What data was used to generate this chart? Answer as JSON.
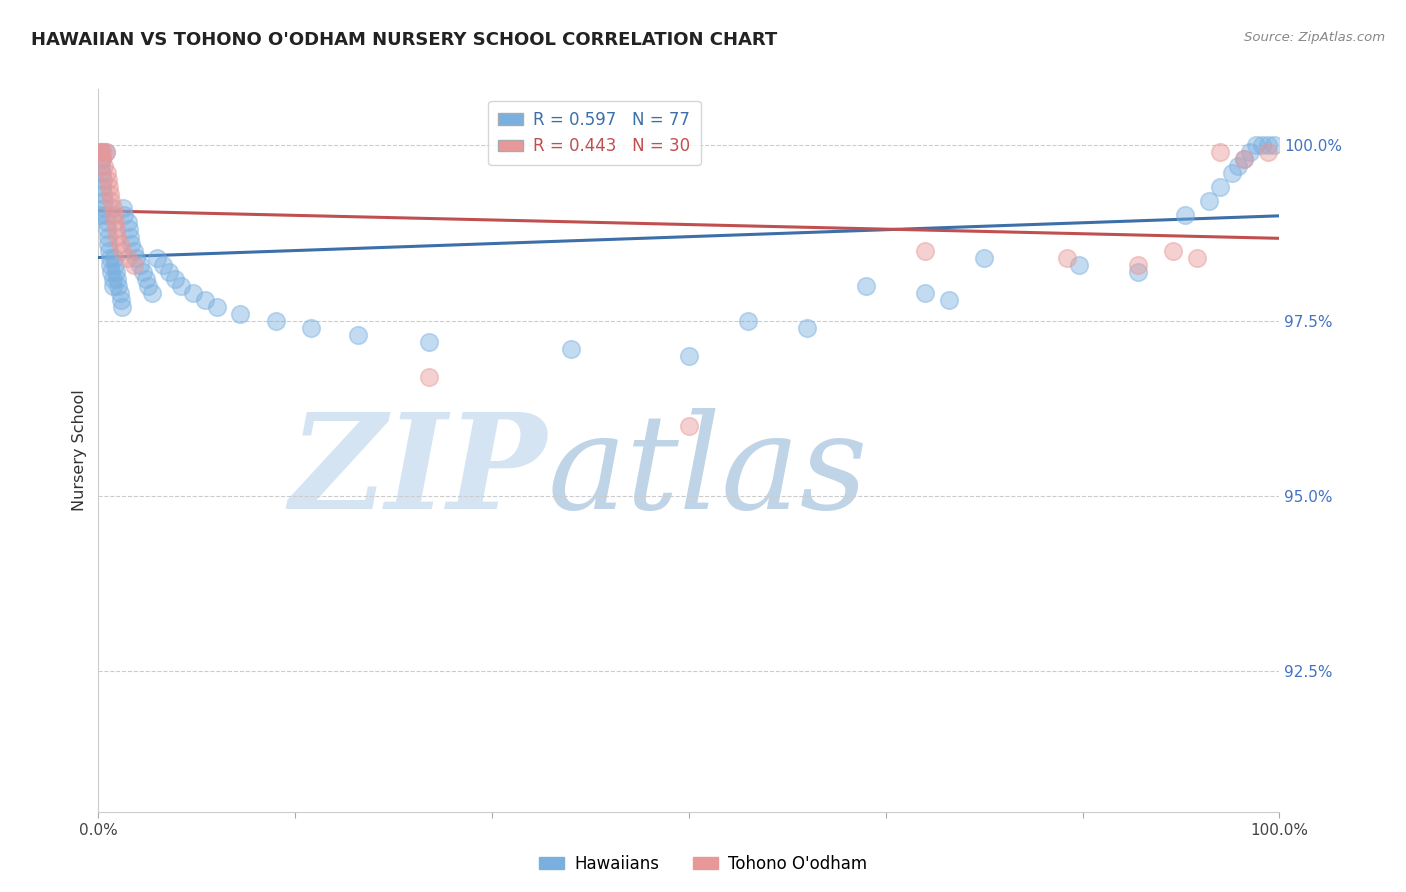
{
  "title": "HAWAIIAN VS TOHONO O'ODHAM NURSERY SCHOOL CORRELATION CHART",
  "source": "Source: ZipAtlas.com",
  "ylabel": "Nursery School",
  "ytick_labels": [
    "100.0%",
    "97.5%",
    "95.0%",
    "92.5%"
  ],
  "ytick_values": [
    1.0,
    0.975,
    0.95,
    0.925
  ],
  "xlim": [
    0.0,
    1.0
  ],
  "ylim": [
    0.905,
    1.008
  ],
  "blue_R": 0.597,
  "blue_N": 77,
  "pink_R": 0.443,
  "pink_N": 30,
  "blue_color": "#7ab0e0",
  "pink_color": "#e89898",
  "blue_line_color": "#3d6fa8",
  "pink_line_color": "#c05050",
  "blue_label": "Hawaiians",
  "pink_label": "Tohono O'odham",
  "watermark_zip_color": "#c8d8ee",
  "watermark_atlas_color": "#b8cce0",
  "grid_color": "#cccccc",
  "axis_label_color": "#4472c4",
  "title_color": "#222222",
  "source_color": "#888888",
  "ylabel_color": "#333333",
  "background_color": "#ffffff",
  "haw_x": [
    0.001,
    0.002,
    0.002,
    0.003,
    0.003,
    0.003,
    0.004,
    0.004,
    0.005,
    0.005,
    0.006,
    0.006,
    0.007,
    0.007,
    0.008,
    0.008,
    0.009,
    0.01,
    0.01,
    0.011,
    0.012,
    0.012,
    0.013,
    0.014,
    0.015,
    0.016,
    0.017,
    0.018,
    0.019,
    0.02,
    0.021,
    0.022,
    0.025,
    0.026,
    0.027,
    0.028,
    0.03,
    0.032,
    0.035,
    0.038,
    0.04,
    0.042,
    0.045,
    0.05,
    0.055,
    0.06,
    0.065,
    0.07,
    0.08,
    0.09,
    0.1,
    0.12,
    0.15,
    0.18,
    0.22,
    0.28,
    0.4,
    0.5,
    0.55,
    0.6,
    0.65,
    0.7,
    0.72,
    0.75,
    0.83,
    0.88,
    0.92,
    0.94,
    0.95,
    0.96,
    0.965,
    0.97,
    0.975,
    0.98,
    0.985,
    0.99,
    0.995
  ],
  "haw_y": [
    0.99,
    0.999,
    0.997,
    0.998,
    0.996,
    0.994,
    0.995,
    0.993,
    0.992,
    0.991,
    0.999,
    0.99,
    0.989,
    0.988,
    0.987,
    0.986,
    0.985,
    0.984,
    0.983,
    0.982,
    0.981,
    0.98,
    0.984,
    0.983,
    0.982,
    0.981,
    0.98,
    0.979,
    0.978,
    0.977,
    0.991,
    0.99,
    0.989,
    0.988,
    0.987,
    0.986,
    0.985,
    0.984,
    0.983,
    0.982,
    0.981,
    0.98,
    0.979,
    0.984,
    0.983,
    0.982,
    0.981,
    0.98,
    0.979,
    0.978,
    0.977,
    0.976,
    0.975,
    0.974,
    0.973,
    0.972,
    0.971,
    0.97,
    0.975,
    0.974,
    0.98,
    0.979,
    0.978,
    0.984,
    0.983,
    0.982,
    0.99,
    0.992,
    0.994,
    0.996,
    0.997,
    0.998,
    0.999,
    1.0,
    1.0,
    1.0,
    1.0
  ],
  "toh_x": [
    0.001,
    0.002,
    0.003,
    0.004,
    0.005,
    0.006,
    0.007,
    0.008,
    0.009,
    0.01,
    0.011,
    0.012,
    0.013,
    0.014,
    0.015,
    0.016,
    0.018,
    0.02,
    0.025,
    0.03,
    0.28,
    0.5,
    0.7,
    0.82,
    0.88,
    0.91,
    0.93,
    0.95,
    0.97,
    0.99
  ],
  "toh_y": [
    0.999,
    0.999,
    0.998,
    0.999,
    0.997,
    0.999,
    0.996,
    0.995,
    0.994,
    0.993,
    0.992,
    0.991,
    0.99,
    0.989,
    0.988,
    0.987,
    0.986,
    0.985,
    0.984,
    0.983,
    0.967,
    0.96,
    0.985,
    0.984,
    0.983,
    0.985,
    0.984,
    0.999,
    0.998,
    0.999
  ]
}
